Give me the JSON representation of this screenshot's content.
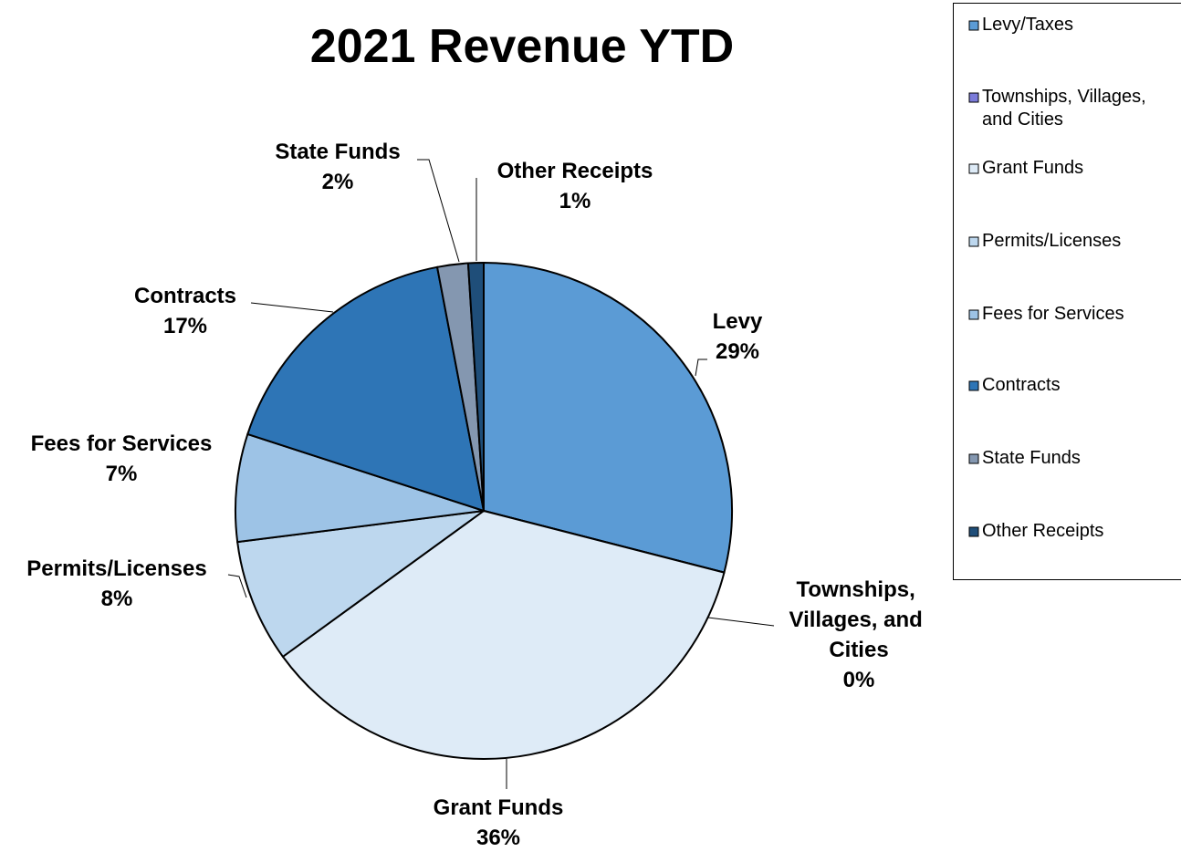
{
  "chart_data": {
    "type": "pie",
    "title": "2021 Revenue YTD",
    "categories": [
      "Levy/Taxes",
      "Townships, Villages, and Cities",
      "Grant Funds",
      "Permits/Licenses",
      "Fees for Services",
      "Contracts",
      "State Funds",
      "Other Receipts"
    ],
    "slice_labels": [
      "Levy",
      "Townships, Villages, and Cities",
      "Grant Funds",
      "Permits/Licenses",
      "Fees for Services",
      "Contracts",
      "State Funds",
      "Other Receipts"
    ],
    "values": [
      29,
      0,
      36,
      8,
      7,
      17,
      2,
      1
    ],
    "value_labels": [
      "29%",
      "0%",
      "36%",
      "8%",
      "7%",
      "17%",
      "2%",
      "1%"
    ],
    "colors": [
      "#5b9bd5",
      "#7b7bd9",
      "#deebf7",
      "#bdd7ee",
      "#9dc3e6",
      "#2e75b6",
      "#8497b0",
      "#1f4e79"
    ],
    "legend": "right"
  }
}
